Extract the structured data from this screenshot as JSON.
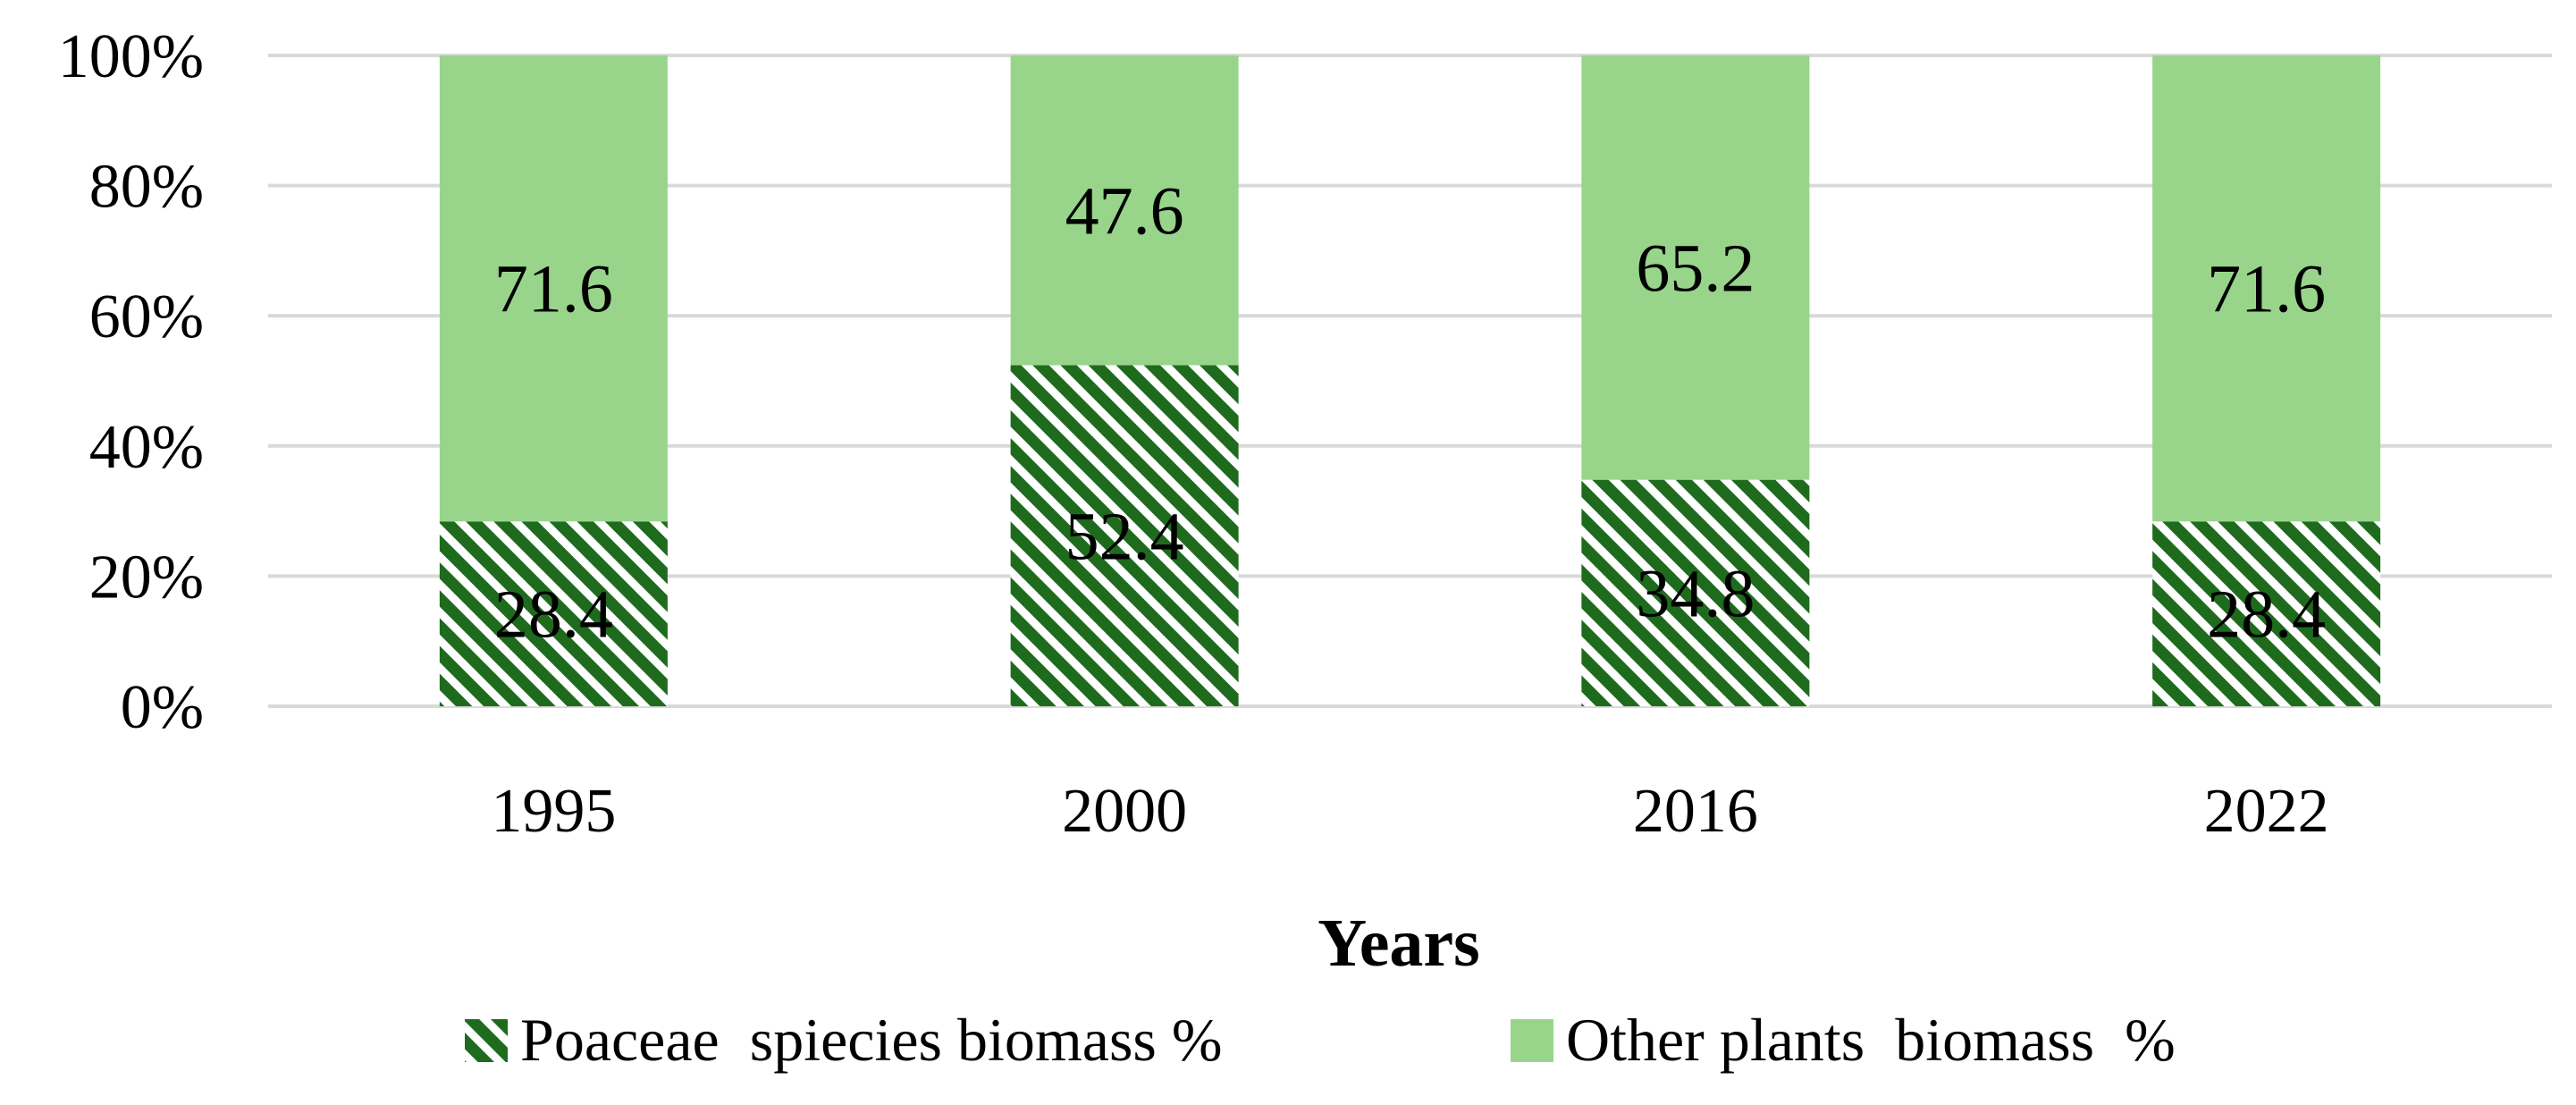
{
  "chart_data": {
    "type": "bar",
    "stacked": true,
    "percent": true,
    "categories": [
      "1995",
      "2000",
      "2016",
      "2022"
    ],
    "series": [
      {
        "name": "Poaceae  spiecies biomass %",
        "values": [
          28.4,
          52.4,
          34.8,
          28.4
        ]
      },
      {
        "name": "Other plants  biomass  %",
        "values": [
          71.6,
          47.6,
          65.2,
          71.6
        ]
      }
    ],
    "xlabel": "Years",
    "ylabel": "",
    "ylim": [
      0,
      100
    ],
    "ytick_labels": [
      "0%",
      "20%",
      "40%",
      "60%",
      "80%",
      "100%"
    ],
    "grid": true,
    "legend_position": "bottom"
  },
  "colors": {
    "poaceae_hatch": "#1e6b1e",
    "other_plants": "#98d58b",
    "gridline": "#d9d9d9",
    "text": "#000000"
  }
}
